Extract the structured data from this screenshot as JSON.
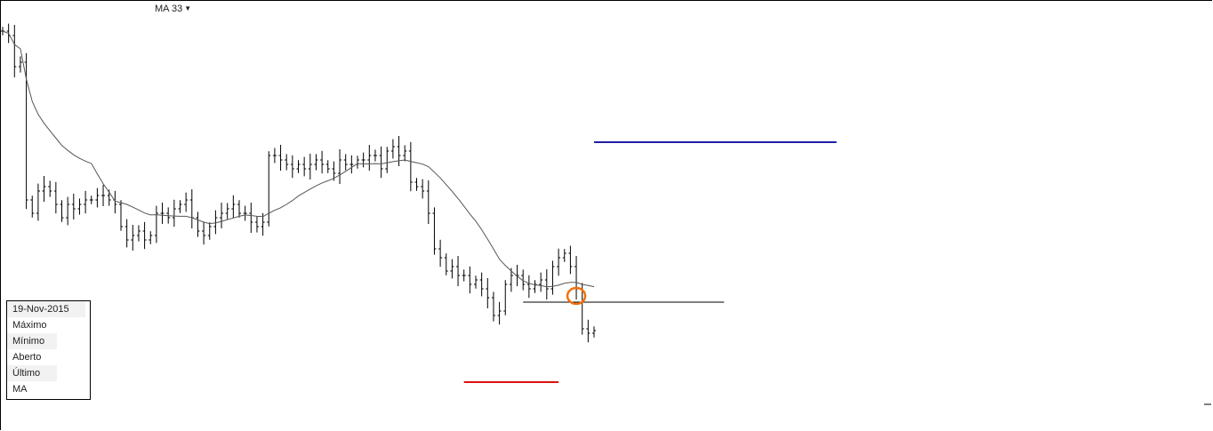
{
  "chart_data": {
    "type": "ohlc",
    "indicator": {
      "label": "MA 33",
      "period": 33,
      "color": "#555555"
    },
    "closes": [
      465,
      460,
      425,
      430,
      275,
      260,
      285,
      290,
      285,
      270,
      255,
      270,
      265,
      270,
      275,
      275,
      280,
      280,
      275,
      270,
      245,
      230,
      235,
      240,
      230,
      235,
      260,
      260,
      255,
      265,
      270,
      275,
      255,
      240,
      235,
      245,
      255,
      260,
      265,
      270,
      260,
      260,
      250,
      245,
      250,
      325,
      325,
      320,
      315,
      310,
      315,
      310,
      315,
      320,
      315,
      310,
      305,
      320,
      315,
      315,
      320,
      320,
      325,
      325,
      310,
      330,
      335,
      325,
      330,
      295,
      290,
      285,
      260,
      220,
      210,
      195,
      200,
      190,
      190,
      180,
      185,
      175,
      165,
      145,
      150,
      180,
      190,
      190,
      180,
      175,
      180,
      185,
      175,
      200,
      210,
      215,
      200,
      175,
      130,
      125,
      128
    ],
    "ylim": [
      15,
      500
    ],
    "bar_color": "#000000",
    "annotations": {
      "lines": [
        {
          "name": "blue-level",
          "price": 340,
          "from_bar": 100,
          "to_bar": 141,
          "color": "#1f1fa8"
        },
        {
          "name": "black-level",
          "price": 160,
          "from_bar": 88,
          "to_bar": 122,
          "color": "#000000"
        },
        {
          "name": "red-level",
          "price": 70,
          "from_bar": 78,
          "to_bar": 94,
          "color": "#e01010"
        }
      ],
      "circle": {
        "bar": 97,
        "price": 167,
        "color": "#f07010"
      }
    }
  },
  "toolbar": {
    "ma_label": "MA 33",
    "ma_icon": "caret-down-icon"
  },
  "info_panel": {
    "date": "19-Nov-2015",
    "rows": [
      "Máximo",
      "Mínimo",
      "Aberto",
      "Último",
      "MA"
    ]
  }
}
